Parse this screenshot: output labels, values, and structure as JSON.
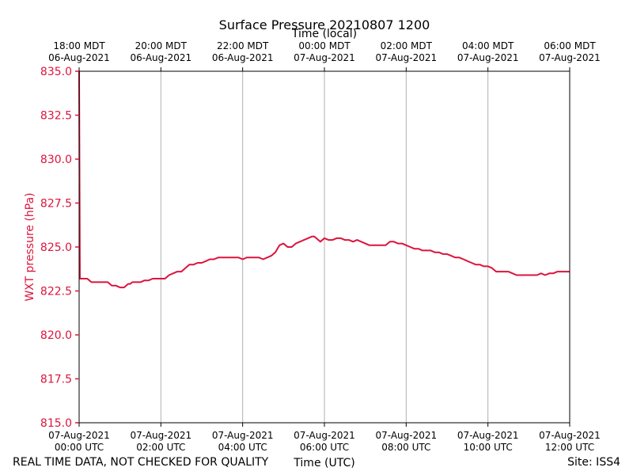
{
  "chart_data": {
    "type": "line",
    "title": "Surface Pressure 20210807 1200",
    "top_axis_title": "Time (local)",
    "xlabel": "Time (UTC)",
    "ylabel": "WXT pressure (hPa)",
    "xlim_hours_utc": [
      0,
      12
    ],
    "ylim": [
      815.0,
      835.0
    ],
    "yticks": [
      815.0,
      817.5,
      820.0,
      822.5,
      825.0,
      827.5,
      830.0,
      832.5,
      835.0
    ],
    "ytick_labels": [
      "815.0",
      "817.5",
      "820.0",
      "822.5",
      "825.0",
      "827.5",
      "830.0",
      "832.5",
      "835.0"
    ],
    "bottom_ticks": [
      {
        "hour": 0,
        "line1": "07-Aug-2021",
        "line2": "00:00 UTC"
      },
      {
        "hour": 2,
        "line1": "07-Aug-2021",
        "line2": "02:00 UTC"
      },
      {
        "hour": 4,
        "line1": "07-Aug-2021",
        "line2": "04:00 UTC"
      },
      {
        "hour": 6,
        "line1": "07-Aug-2021",
        "line2": "06:00 UTC"
      },
      {
        "hour": 8,
        "line1": "07-Aug-2021",
        "line2": "08:00 UTC"
      },
      {
        "hour": 10,
        "line1": "07-Aug-2021",
        "line2": "10:00 UTC"
      },
      {
        "hour": 12,
        "line1": "07-Aug-2021",
        "line2": "12:00 UTC"
      }
    ],
    "top_ticks": [
      {
        "hour": 0,
        "line1": "18:00 MDT",
        "line2": "06-Aug-2021"
      },
      {
        "hour": 2,
        "line1": "20:00 MDT",
        "line2": "06-Aug-2021"
      },
      {
        "hour": 4,
        "line1": "22:00 MDT",
        "line2": "06-Aug-2021"
      },
      {
        "hour": 6,
        "line1": "00:00 MDT",
        "line2": "07-Aug-2021"
      },
      {
        "hour": 8,
        "line1": "02:00 MDT",
        "line2": "07-Aug-2021"
      },
      {
        "hour": 10,
        "line1": "04:00 MDT",
        "line2": "07-Aug-2021"
      },
      {
        "hour": 12,
        "line1": "06:00 MDT",
        "line2": "07-Aug-2021"
      }
    ],
    "grid": "vertical",
    "series": [
      {
        "name": "WXT pressure",
        "color": "#dc143c",
        "x": [
          0.0,
          0.02,
          0.05,
          0.1,
          0.2,
          0.25,
          0.3,
          0.4,
          0.5,
          0.6,
          0.7,
          0.75,
          0.8,
          0.9,
          1.0,
          1.1,
          1.2,
          1.25,
          1.3,
          1.4,
          1.5,
          1.6,
          1.7,
          1.8,
          1.9,
          2.0,
          2.1,
          2.2,
          2.3,
          2.4,
          2.5,
          2.6,
          2.7,
          2.8,
          2.9,
          3.0,
          3.1,
          3.2,
          3.3,
          3.4,
          3.5,
          3.6,
          3.7,
          3.8,
          3.9,
          4.0,
          4.1,
          4.2,
          4.3,
          4.4,
          4.5,
          4.6,
          4.7,
          4.8,
          4.85,
          4.9,
          5.0,
          5.05,
          5.1,
          5.2,
          5.3,
          5.4,
          5.5,
          5.6,
          5.7,
          5.75,
          5.8,
          5.9,
          6.0,
          6.1,
          6.2,
          6.3,
          6.4,
          6.5,
          6.6,
          6.7,
          6.8,
          6.9,
          7.0,
          7.1,
          7.2,
          7.3,
          7.4,
          7.5,
          7.6,
          7.7,
          7.8,
          7.9,
          8.0,
          8.1,
          8.2,
          8.3,
          8.4,
          8.5,
          8.6,
          8.7,
          8.8,
          8.9,
          9.0,
          9.1,
          9.2,
          9.3,
          9.4,
          9.5,
          9.6,
          9.7,
          9.8,
          9.9,
          10.0,
          10.1,
          10.2,
          10.3,
          10.4,
          10.5,
          10.6,
          10.7,
          10.8,
          10.9,
          11.0,
          11.1,
          11.2,
          11.3,
          11.4,
          11.5,
          11.6,
          11.7,
          11.8,
          11.9,
          12.0
        ],
        "y": [
          835.0,
          823.2,
          823.2,
          823.2,
          823.2,
          823.1,
          823.0,
          823.0,
          823.0,
          823.0,
          823.0,
          822.9,
          822.8,
          822.8,
          822.7,
          822.7,
          822.9,
          822.9,
          823.0,
          823.0,
          823.0,
          823.1,
          823.1,
          823.2,
          823.2,
          823.2,
          823.2,
          823.4,
          823.5,
          823.6,
          823.6,
          823.8,
          824.0,
          824.0,
          824.1,
          824.1,
          824.2,
          824.3,
          824.3,
          824.4,
          824.4,
          824.4,
          824.4,
          824.4,
          824.4,
          824.3,
          824.4,
          824.4,
          824.4,
          824.4,
          824.3,
          824.4,
          824.5,
          824.7,
          824.9,
          825.1,
          825.2,
          825.1,
          825.0,
          825.0,
          825.2,
          825.3,
          825.4,
          825.5,
          825.6,
          825.6,
          825.5,
          825.3,
          825.5,
          825.4,
          825.4,
          825.5,
          825.5,
          825.4,
          825.4,
          825.3,
          825.4,
          825.3,
          825.2,
          825.1,
          825.1,
          825.1,
          825.1,
          825.1,
          825.3,
          825.3,
          825.2,
          825.2,
          825.1,
          825.0,
          824.9,
          824.9,
          824.8,
          824.8,
          824.8,
          824.7,
          824.7,
          824.6,
          824.6,
          824.5,
          824.4,
          824.4,
          824.3,
          824.2,
          824.1,
          824.0,
          824.0,
          823.9,
          823.9,
          823.8,
          823.6,
          823.6,
          823.6,
          823.6,
          823.5,
          823.4,
          823.4,
          823.4,
          823.4,
          823.4,
          823.4,
          823.5,
          823.4,
          823.5,
          823.5,
          823.6,
          823.6,
          823.6,
          823.6
        ]
      }
    ]
  },
  "footer": {
    "left_note": "REAL TIME DATA, NOT CHECKED FOR QUALITY",
    "site": "Site: ISS4"
  },
  "colors": {
    "series": "#dc143c",
    "grid": "#b0b0b0",
    "axis": "#000000",
    "ylabel": "#dc143c"
  }
}
